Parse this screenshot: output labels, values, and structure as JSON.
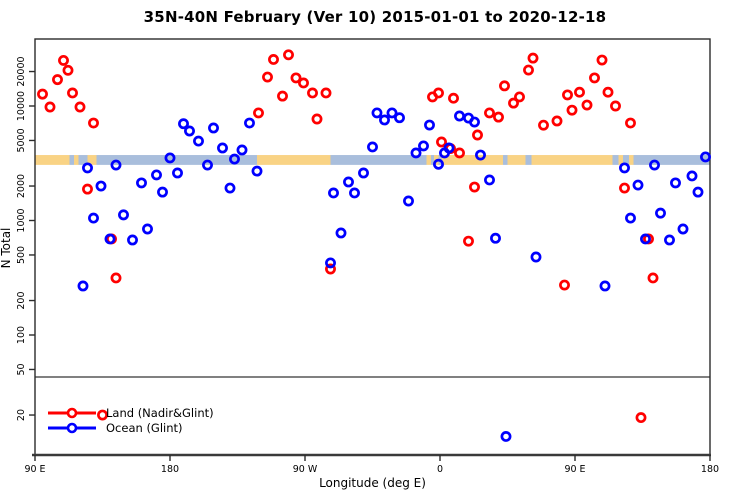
{
  "title": "35N-40N February (Ver 10)   2015-01-01 to 2020-12-18",
  "chart_data": {
    "type": "scatter",
    "title": "35N-40N February (Ver 10)   2015-01-01 to 2020-12-18",
    "xlabel": "Longitude (deg E)",
    "ylabel": "N Total",
    "x_axis": {
      "range": [
        90,
        540
      ],
      "ticks": [
        90,
        180,
        270,
        360,
        450,
        540
      ],
      "tick_labels": [
        "90 E",
        "180",
        "90 W",
        "0",
        "90 E",
        "180"
      ],
      "note": "longitude wraps eastward: 90E to 180 to 90W to 0 to 90E to 180"
    },
    "y_axis": {
      "scale": "log10",
      "range": [
        9,
        38500
      ],
      "ticks": [
        20,
        50,
        100,
        200,
        500,
        1000,
        2000,
        5000,
        10000,
        20000
      ],
      "tick_labels": [
        "20",
        "50",
        "100",
        "200",
        "500",
        "1000",
        "2000",
        "5000",
        "10000",
        "20000"
      ]
    },
    "grid": "off",
    "reference_line_y": 43,
    "band": {
      "y_range": [
        3060,
        3730
      ],
      "land_color": "#F9D385",
      "ocean_color": "#A9BEDC",
      "segments": [
        {
          "from": 90,
          "to": 113,
          "type": "land"
        },
        {
          "from": 113,
          "to": 116,
          "type": "ocean"
        },
        {
          "from": 116,
          "to": 119,
          "type": "land"
        },
        {
          "from": 119,
          "to": 125,
          "type": "ocean"
        },
        {
          "from": 125,
          "to": 131,
          "type": "land"
        },
        {
          "from": 131,
          "to": 238,
          "type": "ocean"
        },
        {
          "from": 238,
          "to": 287,
          "type": "land"
        },
        {
          "from": 287,
          "to": 351,
          "type": "ocean"
        },
        {
          "from": 351,
          "to": 354,
          "type": "land"
        },
        {
          "from": 354,
          "to": 356,
          "type": "ocean"
        },
        {
          "from": 356,
          "to": 359,
          "type": "land"
        },
        {
          "from": 359,
          "to": 361,
          "type": "ocean"
        },
        {
          "from": 361,
          "to": 402,
          "type": "land"
        },
        {
          "from": 402,
          "to": 405,
          "type": "ocean"
        },
        {
          "from": 405,
          "to": 417,
          "type": "land"
        },
        {
          "from": 417,
          "to": 421,
          "type": "ocean"
        },
        {
          "from": 421,
          "to": 475,
          "type": "land"
        },
        {
          "from": 475,
          "to": 479,
          "type": "ocean"
        },
        {
          "from": 479,
          "to": 482,
          "type": "land"
        },
        {
          "from": 482,
          "to": 486,
          "type": "ocean"
        },
        {
          "from": 486,
          "to": 489,
          "type": "land"
        },
        {
          "from": 489,
          "to": 540,
          "type": "ocean"
        }
      ]
    },
    "legend": {
      "position": "bottom-left",
      "entries": [
        {
          "label": "Land (Nadir&Glint)",
          "color": "#FF0000"
        },
        {
          "label": "Ocean (Glint)",
          "color": "#0000FF"
        }
      ]
    },
    "series": [
      {
        "name": "Land (Nadir&Glint)",
        "color": "#FF0000",
        "points": [
          [
            109,
            25000
          ],
          [
            112,
            20500
          ],
          [
            105,
            17000
          ],
          [
            95,
            12700
          ],
          [
            115,
            13000
          ],
          [
            100,
            9800
          ],
          [
            120,
            9800
          ],
          [
            129,
            7100
          ],
          [
            125,
            1880
          ],
          [
            141,
            690
          ],
          [
            144,
            315
          ],
          [
            135,
            20
          ],
          [
            249,
            25500
          ],
          [
            259,
            28000
          ],
          [
            245,
            17900
          ],
          [
            264,
            17600
          ],
          [
            269,
            15900
          ],
          [
            255,
            12200
          ],
          [
            275,
            13000
          ],
          [
            284,
            13000
          ],
          [
            239,
            8700
          ],
          [
            278,
            7700
          ],
          [
            287,
            377
          ],
          [
            355,
            12000
          ],
          [
            359,
            13000
          ],
          [
            369,
            11700
          ],
          [
            361,
            4850
          ],
          [
            367,
            4250
          ],
          [
            373,
            3890
          ],
          [
            383,
            1960
          ],
          [
            379,
            660
          ],
          [
            385,
            5580
          ],
          [
            393,
            8700
          ],
          [
            399,
            8000
          ],
          [
            403,
            15000
          ],
          [
            409,
            10600
          ],
          [
            413,
            12000
          ],
          [
            419,
            20600
          ],
          [
            422,
            26200
          ],
          [
            429,
            6800
          ],
          [
            443,
            273
          ],
          [
            438,
            7400
          ],
          [
            445,
            12500
          ],
          [
            448,
            9200
          ],
          [
            453,
            13200
          ],
          [
            458,
            10200
          ],
          [
            463,
            17600
          ],
          [
            468,
            25200
          ],
          [
            472,
            13200
          ],
          [
            477,
            10000
          ],
          [
            483,
            1920
          ],
          [
            487,
            7100
          ],
          [
            494,
            19
          ],
          [
            499,
            690
          ],
          [
            502,
            315
          ]
        ]
      },
      {
        "name": "Ocean (Glint)",
        "color": "#0000FF",
        "points": [
          [
            189,
            7000
          ],
          [
            193,
            6050
          ],
          [
            199,
            4940
          ],
          [
            209,
            6430
          ],
          [
            180,
            3520
          ],
          [
            205,
            3050
          ],
          [
            125,
            2880
          ],
          [
            144,
            3050
          ],
          [
            171,
            2500
          ],
          [
            185,
            2600
          ],
          [
            161,
            2130
          ],
          [
            175,
            1770
          ],
          [
            134,
            2000
          ],
          [
            129,
            1050
          ],
          [
            149,
            1120
          ],
          [
            140,
            690
          ],
          [
            155,
            676
          ],
          [
            165,
            843
          ],
          [
            122,
            268
          ],
          [
            233,
            7100
          ],
          [
            215,
            4300
          ],
          [
            228,
            4130
          ],
          [
            223,
            3440
          ],
          [
            238,
            2700
          ],
          [
            220,
            1920
          ],
          [
            294,
            778
          ],
          [
            287,
            426
          ],
          [
            309,
            2600
          ],
          [
            299,
            2170
          ],
          [
            303,
            1740
          ],
          [
            289,
            1740
          ],
          [
            318,
            8700
          ],
          [
            323,
            7550
          ],
          [
            328,
            8700
          ],
          [
            333,
            7900
          ],
          [
            315,
            4390
          ],
          [
            339,
            1480
          ],
          [
            344,
            3890
          ],
          [
            349,
            4480
          ],
          [
            353,
            6820
          ],
          [
            359,
            3100
          ],
          [
            363,
            3890
          ],
          [
            366,
            4300
          ],
          [
            373,
            8180
          ],
          [
            379,
            7850
          ],
          [
            383,
            7240
          ],
          [
            387,
            3730
          ],
          [
            393,
            2260
          ],
          [
            397,
            700
          ],
          [
            424,
            480
          ],
          [
            404,
            13
          ],
          [
            470,
            268
          ],
          [
            483,
            2880
          ],
          [
            487,
            1050
          ],
          [
            492,
            2040
          ],
          [
            497,
            690
          ],
          [
            503,
            3050
          ],
          [
            507,
            1160
          ],
          [
            513,
            676
          ],
          [
            517,
            2130
          ],
          [
            522,
            843
          ],
          [
            528,
            2450
          ],
          [
            532,
            1770
          ],
          [
            537,
            3590
          ]
        ]
      }
    ]
  }
}
